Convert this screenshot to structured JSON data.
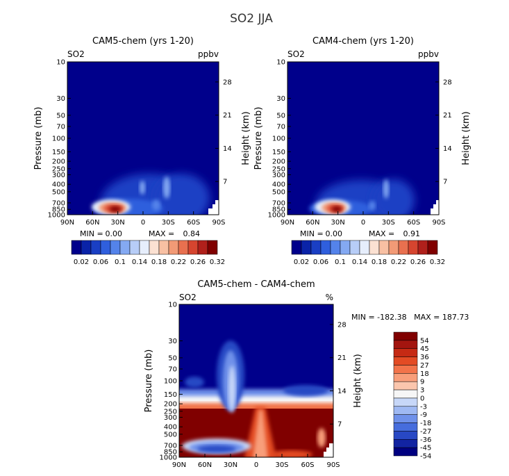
{
  "page": {
    "title": "SO2 JJA"
  },
  "chart_data": [
    {
      "type": "heatmap",
      "title": "CAM5-chem (yrs 1-20)",
      "left_label": "SO2",
      "right_label": "ppbv",
      "ylabel": "Pressure (mb)",
      "y2label": "Height (km)",
      "x_ticks": [
        "90N",
        "60N",
        "30N",
        "0",
        "30S",
        "60S",
        "90S"
      ],
      "y_ticks": [
        "10",
        "30",
        "50",
        "70",
        "100",
        "150",
        "200",
        "250",
        "300",
        "400",
        "500",
        "700",
        "850",
        "1000"
      ],
      "y2_ticks": [
        "28",
        "21",
        "14",
        "7"
      ],
      "stats": {
        "min_label": "MIN =",
        "min": "0.00",
        "max_label": "MAX =",
        "max": "0.84"
      },
      "colorbar": {
        "orientation": "horizontal",
        "labels": [
          "0.02",
          "0.06",
          "0.1",
          "0.14",
          "0.18",
          "0.22",
          "0.26",
          "0.32"
        ]
      },
      "hotspots": [
        {
          "lat": 38,
          "p": 800,
          "value": 0.34
        },
        {
          "lat": 20,
          "p": 780,
          "value": 0.18
        },
        {
          "lat": -5,
          "p": 750,
          "value": 0.12
        },
        {
          "lat": -22,
          "p": 450,
          "value": 0.08
        },
        {
          "lat": 5,
          "p": 420,
          "value": 0.06
        }
      ]
    },
    {
      "type": "heatmap",
      "title": "CAM4-chem (yrs 1-20)",
      "left_label": "SO2",
      "right_label": "ppbv",
      "ylabel": "Pressure (mb)",
      "y2label": "Height (km)",
      "x_ticks": [
        "90N",
        "60N",
        "30N",
        "0",
        "30S",
        "60S",
        "90S"
      ],
      "y_ticks": [
        "10",
        "30",
        "50",
        "70",
        "100",
        "150",
        "200",
        "250",
        "300",
        "400",
        "500",
        "700",
        "850",
        "1000"
      ],
      "y2_ticks": [
        "28",
        "21",
        "14",
        "7"
      ],
      "stats": {
        "min_label": "MIN =",
        "min": "0.00",
        "max_label": "MAX =",
        "max": "0.91"
      },
      "colorbar": {
        "orientation": "horizontal",
        "labels": [
          "0.02",
          "0.06",
          "0.1",
          "0.14",
          "0.18",
          "0.22",
          "0.26",
          "0.32"
        ]
      },
      "hotspots": [
        {
          "lat": 38,
          "p": 800,
          "value": 0.36
        },
        {
          "lat": 20,
          "p": 790,
          "value": 0.16
        },
        {
          "lat": -5,
          "p": 760,
          "value": 0.1
        },
        {
          "lat": -22,
          "p": 460,
          "value": 0.07
        }
      ]
    },
    {
      "type": "heatmap",
      "title": "CAM5-chem - CAM4-chem",
      "left_label": "SO2",
      "right_label": "%",
      "ylabel": "Pressure (mb)",
      "y2label": "Height (km)",
      "x_ticks": [
        "90N",
        "60N",
        "30N",
        "0",
        "30S",
        "60S",
        "90S"
      ],
      "y_ticks": [
        "10",
        "30",
        "50",
        "70",
        "100",
        "150",
        "200",
        "250",
        "300",
        "400",
        "500",
        "700",
        "850",
        "1000"
      ],
      "y2_ticks": [
        "28",
        "21",
        "14",
        "7"
      ],
      "stats": {
        "text": "MIN = -182.38   MAX = 187.73",
        "min": "-182.38",
        "max": "187.73"
      },
      "colorbar": {
        "orientation": "vertical",
        "labels": [
          "54",
          "45",
          "36",
          "27",
          "18",
          "9",
          "3",
          "0",
          "-3",
          "-9",
          "-18",
          "-27",
          "-36",
          "-45",
          "-54"
        ]
      }
    }
  ],
  "colors": {
    "seq_palette": [
      "#00008b",
      "#0a23a8",
      "#1a3fc4",
      "#2f5fdd",
      "#5483ea",
      "#84a9f2",
      "#b7cdf7",
      "#e6eefc",
      "#fbe1d2",
      "#f8c0a3",
      "#f29a76",
      "#e8704f",
      "#d6452f",
      "#b0201b",
      "#800000"
    ],
    "div_palette": [
      "#800000",
      "#a3150f",
      "#c62a14",
      "#e34b24",
      "#f2734a",
      "#f89e7a",
      "#fbc6ad",
      "#f6f6f6",
      "#c7d7f8",
      "#9fb9f3",
      "#6f91ea",
      "#466ddd",
      "#2848c4",
      "#1224a2",
      "#000080"
    ]
  }
}
